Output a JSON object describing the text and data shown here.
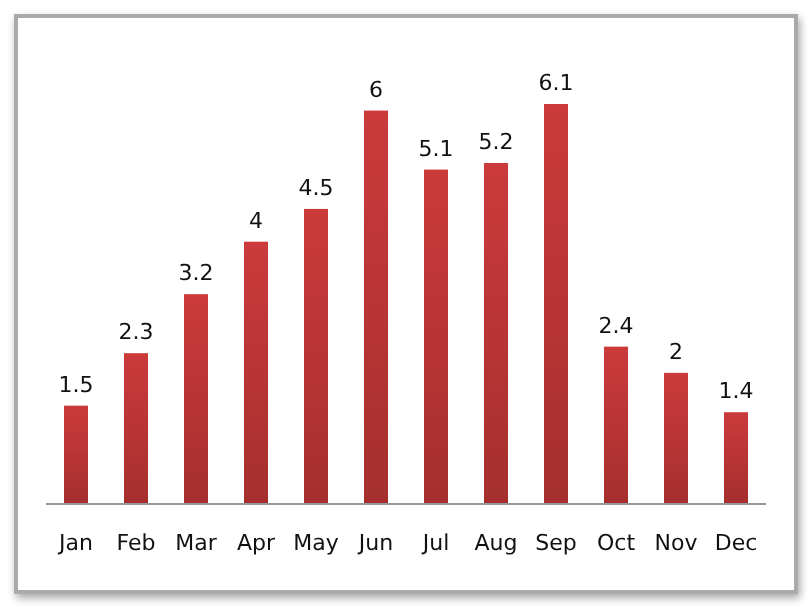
{
  "chart_data": {
    "type": "bar",
    "categories": [
      "Jan",
      "Feb",
      "Mar",
      "Apr",
      "May",
      "Jun",
      "Jul",
      "Aug",
      "Sep",
      "Oct",
      "Nov",
      "Dec"
    ],
    "values": [
      1.5,
      2.3,
      3.2,
      4,
      4.5,
      6,
      5.1,
      5.2,
      6.1,
      2.4,
      2,
      1.4
    ],
    "color": "#cc3a3a",
    "data_labels": true
  }
}
